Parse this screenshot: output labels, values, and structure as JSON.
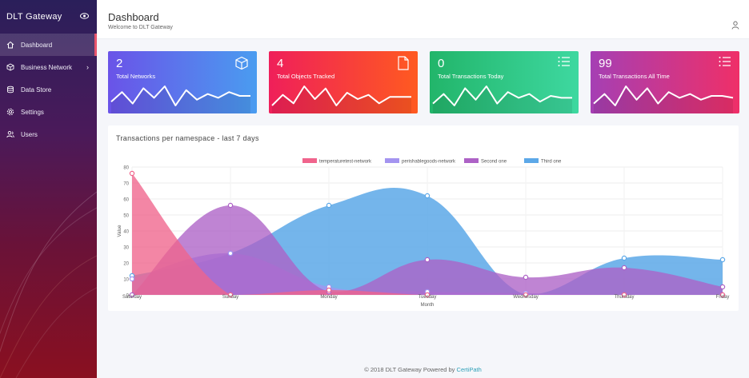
{
  "sidebar": {
    "brand": "DLT Gateway",
    "items": [
      {
        "label": "Dashboard",
        "icon": "home-icon",
        "active": true
      },
      {
        "label": "Business Network",
        "icon": "cube-icon",
        "has_submenu": true
      },
      {
        "label": "Data Store",
        "icon": "database-icon"
      },
      {
        "label": "Settings",
        "icon": "gear-icon"
      },
      {
        "label": "Users",
        "icon": "users-icon"
      }
    ],
    "submenu_chevron": "›"
  },
  "header": {
    "title": "Dashboard",
    "subtitle": "Welcome to DLT Gateway"
  },
  "cards": [
    {
      "value": "2",
      "label": "Total Networks",
      "icon": "cube-icon",
      "spark": [
        4,
        9,
        3,
        11,
        6,
        12,
        2,
        10,
        5,
        8,
        6,
        9,
        7,
        7
      ],
      "color_start": "#6a53e8",
      "color_end": "#4a9cf0"
    },
    {
      "value": "4",
      "label": "Total Objects Tracked",
      "icon": "file-icon",
      "spark": [
        3,
        8,
        4,
        12,
        6,
        11,
        3,
        9,
        6,
        8,
        4,
        7,
        7,
        7
      ],
      "color_start": "#ef1f5a",
      "color_end": "#ff5a20"
    },
    {
      "value": "0",
      "label": "Total Transactions Today",
      "icon": "list-icon",
      "spark": [
        3,
        8,
        2,
        11,
        5,
        12,
        3,
        9,
        6,
        8,
        4,
        7,
        6,
        6
      ],
      "color_start": "#22b56a",
      "color_end": "#3ed8a0"
    },
    {
      "value": "99",
      "label": "Total Transactions All Time",
      "icon": "list-icon",
      "spark": [
        3,
        8,
        2,
        12,
        5,
        11,
        3,
        9,
        6,
        8,
        5,
        7,
        7,
        6
      ],
      "color_start": "#a53fb4",
      "color_end": "#ef2f68"
    }
  ],
  "chart_panel": {
    "title": "Transactions per namespace - last 7 days"
  },
  "chart_data": {
    "type": "area",
    "title": "",
    "xlabel": "Month",
    "ylabel": "Value",
    "categories": [
      "Saturday",
      "Sunday",
      "Monday",
      "Tuesday",
      "Wednesday",
      "Thursday",
      "Friday"
    ],
    "ylim": [
      0,
      80
    ],
    "yticks": [
      0,
      10,
      20,
      30,
      40,
      50,
      60,
      70,
      80
    ],
    "grid": true,
    "legend_position": "top",
    "series": [
      {
        "name": "temperaturetest-network",
        "color": "#f0648c",
        "values": [
          76,
          0,
          3,
          0,
          0,
          0,
          0
        ]
      },
      {
        "name": "perishablegoods-network",
        "color": "#a494f0",
        "values": [
          10,
          26,
          5,
          2,
          1,
          0,
          0
        ]
      },
      {
        "name": "Second one",
        "color": "#ad62c6",
        "values": [
          0,
          56,
          2,
          22,
          11,
          17,
          5
        ]
      },
      {
        "name": "Third one",
        "color": "#5ca8e8",
        "values": [
          12,
          26,
          56,
          62,
          0,
          23,
          22
        ]
      }
    ]
  },
  "footer": {
    "text": "© 2018 DLT Gateway Powered by",
    "link": "CertiPath"
  }
}
